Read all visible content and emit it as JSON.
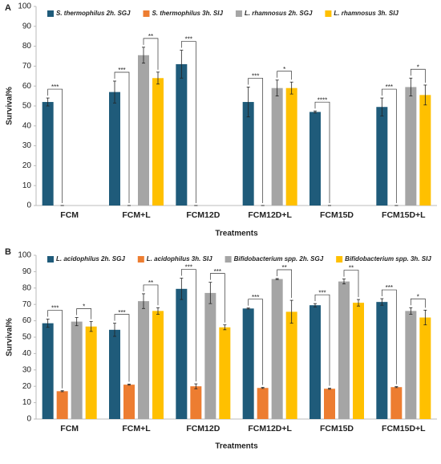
{
  "chart_data": [
    {
      "type": "bar",
      "panel": "A",
      "xlabel": "Treatments",
      "ylabel": "Survival%",
      "categories": [
        "FCM",
        "FCM+L",
        "FCM12D",
        "FCM12D+L",
        "FCM15D",
        "FCM15D+L"
      ],
      "ylim": [
        0,
        100
      ],
      "yticks": [
        0,
        10,
        20,
        30,
        40,
        50,
        60,
        70,
        80,
        90,
        100
      ],
      "series": [
        {
          "name": "S. thermophilus 2h. SGJ",
          "color": "#1f5b7a",
          "values": [
            52,
            57,
            71,
            52,
            47,
            49.5
          ],
          "errors": [
            2,
            5.5,
            7,
            7.5,
            0.5,
            4.5
          ]
        },
        {
          "name": "S. thermophilus 3h. SIJ",
          "color": "#ed7d31",
          "values": [
            0,
            0,
            0,
            0,
            0,
            0
          ],
          "errors": [
            0,
            0,
            0,
            0,
            0,
            0
          ],
          "significance": [
            "***",
            "***",
            "***",
            "***",
            "****",
            "***"
          ]
        },
        {
          "name": "L. rhamnosus  2h. SGJ",
          "color": "#a5a5a5",
          "values": [
            null,
            75.5,
            null,
            59,
            null,
            59.5
          ],
          "errors": [
            null,
            4,
            null,
            4,
            null,
            4.5
          ]
        },
        {
          "name": "L. rhamnosus 3h. SIJ",
          "color": "#ffc000",
          "values": [
            null,
            64,
            null,
            59,
            null,
            55.5
          ],
          "errors": [
            null,
            3,
            null,
            3,
            null,
            5
          ],
          "significance": [
            null,
            "**",
            null,
            "*",
            null,
            "*"
          ]
        }
      ]
    },
    {
      "type": "bar",
      "panel": "B",
      "xlabel": "Treatments",
      "ylabel": "Survival%",
      "categories": [
        "FCM",
        "FCM+L",
        "FCM12D",
        "FCM12D+L",
        "FCM15D",
        "FCM15D+L"
      ],
      "ylim": [
        0,
        100
      ],
      "yticks": [
        0,
        10,
        20,
        30,
        40,
        50,
        60,
        70,
        80,
        90,
        100
      ],
      "series": [
        {
          "name": "L. acidophilus  2h. SGJ",
          "color": "#1f5b7a",
          "values": [
            58.5,
            54.5,
            79.5,
            67.5,
            69.5,
            71.5
          ],
          "errors": [
            2.5,
            4,
            6.5,
            0.3,
            1,
            2
          ]
        },
        {
          "name": "L. acidophilus  3h. SIJ",
          "color": "#ed7d31",
          "values": [
            17,
            21,
            20,
            19,
            18.5,
            19.5
          ],
          "errors": [
            0.3,
            0.3,
            1.5,
            0.3,
            0.3,
            0.3
          ],
          "significance": [
            "***",
            "***",
            "***",
            "***",
            "***",
            "***"
          ]
        },
        {
          "name": "Bifidobacterium spp.  2h. SGJ",
          "color": "#a5a5a5",
          "values": [
            59.5,
            72,
            77,
            85.5,
            84,
            66
          ],
          "errors": [
            2.5,
            4.5,
            6.5,
            0.3,
            1.5,
            2
          ]
        },
        {
          "name": "Bifidobacterium spp. 3h. SIJ",
          "color": "#ffc000",
          "values": [
            56.5,
            66,
            56,
            65.5,
            71,
            62
          ],
          "errors": [
            3,
            2,
            1.5,
            7,
            2,
            4.5
          ],
          "significance": [
            "*",
            "**",
            "***",
            "**",
            "**",
            "*"
          ]
        }
      ]
    }
  ]
}
